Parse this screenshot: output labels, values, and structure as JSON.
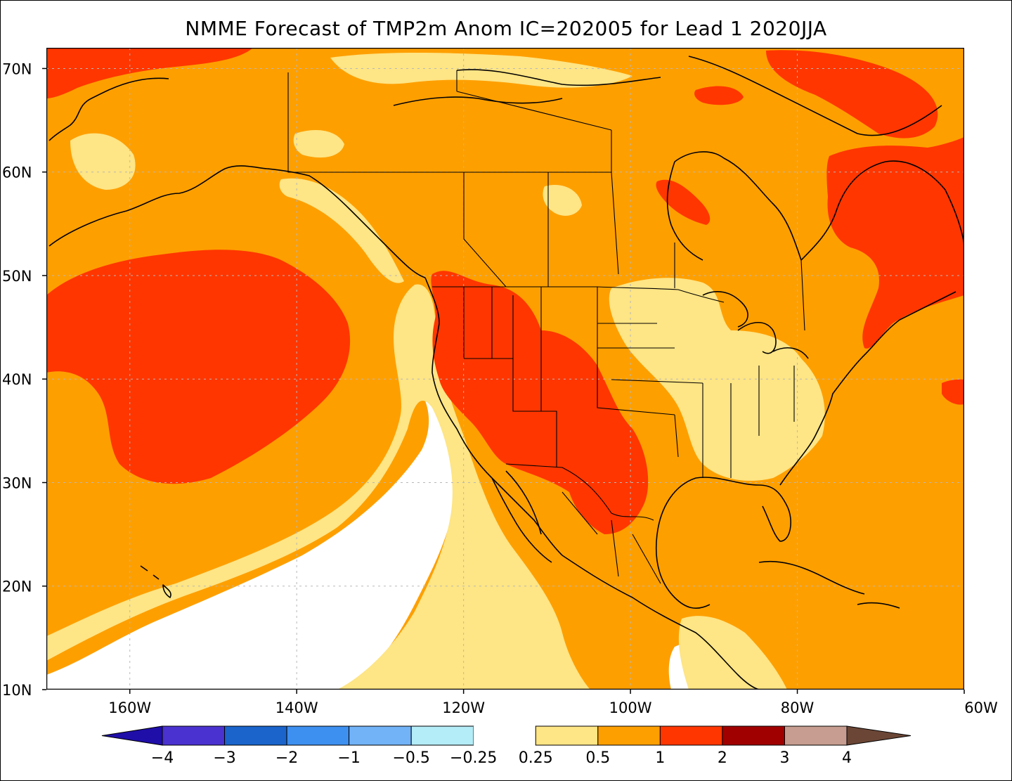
{
  "title": "NMME Forecast of TMP2m Anom IC=202005 for Lead 1 2020JJA",
  "map": {
    "lon_range": [
      -170,
      -60
    ],
    "lat_range": [
      10,
      72
    ],
    "x_ticks": [
      {
        "lon": -160,
        "label": "160W"
      },
      {
        "lon": -140,
        "label": "140W"
      },
      {
        "lon": -120,
        "label": "120W"
      },
      {
        "lon": -100,
        "label": "100W"
      },
      {
        "lon": -80,
        "label": "80W"
      },
      {
        "lon": -60,
        "label": "60W"
      }
    ],
    "y_ticks": [
      {
        "lat": 70,
        "label": "70N"
      },
      {
        "lat": 60,
        "label": "60N"
      },
      {
        "lat": 50,
        "label": "50N"
      },
      {
        "lat": 40,
        "label": "40N"
      },
      {
        "lat": 30,
        "label": "30N"
      },
      {
        "lat": 20,
        "label": "20N"
      },
      {
        "lat": 10,
        "label": "10N"
      }
    ],
    "grid_lines": true,
    "variable": "2m temperature anomaly"
  },
  "colorbar": {
    "labels": [
      "-4",
      "-3",
      "-2",
      "-1",
      "-0.5",
      "-0.25",
      "0.25",
      "0.5",
      "1",
      "2",
      "3",
      "4"
    ],
    "colors": {
      "below_-4": "#1f0ea8",
      "-4_-3": "#4a32d0",
      "-3_-2": "#1a64cc",
      "-2_-1": "#3d8ff0",
      "-1_-0.5": "#72b2f7",
      "-0.5_-0.25": "#b4ecf7",
      "-0.25_0.25": "#ffffff",
      "0.25_0.5": "#fee585",
      "0.5_1": "#fe9f00",
      "1_2": "#ff3600",
      "2_3": "#a00000",
      "3_4": "#c69d90",
      "above_4": "#6b4636"
    }
  }
}
